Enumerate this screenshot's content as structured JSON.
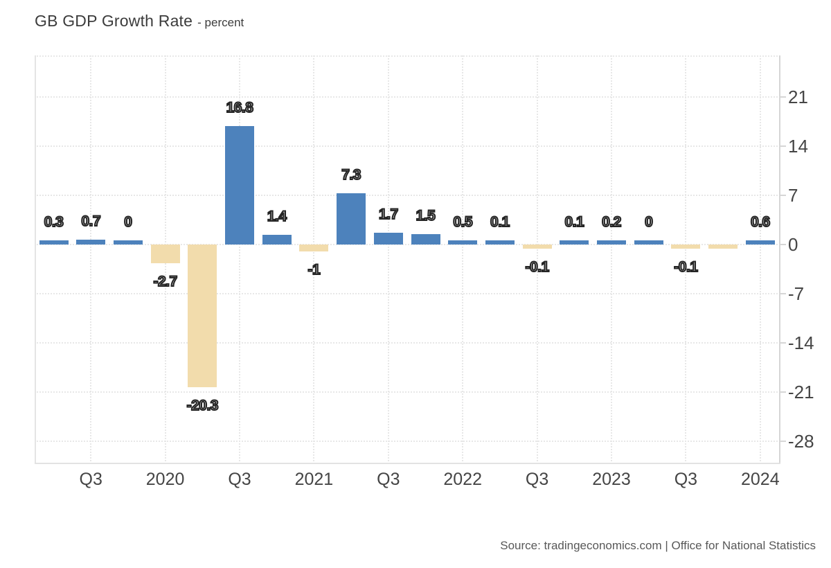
{
  "header": {
    "title": "GB GDP Growth Rate",
    "subtitle": "- percent"
  },
  "footer": {
    "source": "Source: tradingeconomics.com | Office for National Statistics"
  },
  "chart_data": {
    "type": "bar",
    "title": "GB GDP Growth Rate",
    "unit": "percent",
    "grid": "dotted",
    "legend": null,
    "ylim": [
      -31.2,
      26.9
    ],
    "y_ticks": [
      21,
      14,
      7,
      0,
      -7,
      -14,
      -21,
      -28
    ],
    "x_ticks": [
      {
        "label": "Q3",
        "bar_index": 1
      },
      {
        "label": "2020",
        "bar_index": 3
      },
      {
        "label": "Q3",
        "bar_index": 5
      },
      {
        "label": "2021",
        "bar_index": 7
      },
      {
        "label": "Q3",
        "bar_index": 9
      },
      {
        "label": "2022",
        "bar_index": 11
      },
      {
        "label": "Q3",
        "bar_index": 13
      },
      {
        "label": "2023",
        "bar_index": 15
      },
      {
        "label": "Q3",
        "bar_index": 17
      },
      {
        "label": "2024",
        "bar_index": 19
      }
    ],
    "bars": [
      {
        "value": 0.3,
        "label": "0.3"
      },
      {
        "value": 0.7,
        "label": "0.7"
      },
      {
        "value": 0,
        "label": "0"
      },
      {
        "value": -2.7,
        "label": "-2.7"
      },
      {
        "value": -20.3,
        "label": "-20.3"
      },
      {
        "value": 16.8,
        "label": "16.8"
      },
      {
        "value": 1.4,
        "label": "1.4"
      },
      {
        "value": -1,
        "label": "-1"
      },
      {
        "value": 7.3,
        "label": "7.3"
      },
      {
        "value": 1.7,
        "label": "1.7"
      },
      {
        "value": 1.5,
        "label": "1.5"
      },
      {
        "value": 0.5,
        "label": "0.5"
      },
      {
        "value": 0.1,
        "label": "0.1"
      },
      {
        "value": -0.1,
        "label": "-0.1"
      },
      {
        "value": 0.1,
        "label": "0.1"
      },
      {
        "value": 0.2,
        "label": "0.2"
      },
      {
        "value": 0,
        "label": "0"
      },
      {
        "value": -0.1,
        "label": "-0.1"
      },
      {
        "value": -0.1,
        "label": ""
      },
      {
        "value": 0.6,
        "label": "0.6"
      }
    ],
    "colors": {
      "positive": "#4d82bc",
      "negative": "#f2dcac",
      "label_fill": "#b5b5b5",
      "label_stroke": "#242424"
    }
  }
}
